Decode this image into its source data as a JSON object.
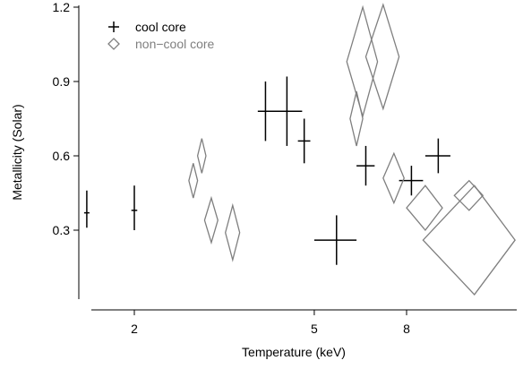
{
  "chart_data": {
    "type": "scatter",
    "title": "",
    "xlabel": "Temperature (keV)",
    "ylabel": "Metallicity (Solar)",
    "x_scale": "log",
    "xlim": [
      1.45,
      14.0
    ],
    "ylim": [
      0.0,
      1.2
    ],
    "x_ticks": [
      {
        "value": 2,
        "label": "2"
      },
      {
        "value": 5,
        "label": "5"
      },
      {
        "value": 8,
        "label": "8"
      }
    ],
    "y_ticks": [
      {
        "value": 0.3,
        "label": "0.3"
      },
      {
        "value": 0.6,
        "label": "0.6"
      },
      {
        "value": 0.9,
        "label": "0.9"
      },
      {
        "value": 1.2,
        "label": "1.2"
      }
    ],
    "grid": false,
    "legend_position": "top-left",
    "series": [
      {
        "name": "cool core",
        "marker": "cross",
        "color": "#000000",
        "points": [
          {
            "x": 1.57,
            "y": 0.37,
            "x_err": [
              0.0,
              0.0
            ],
            "y_err": [
              0.06,
              0.09
            ]
          },
          {
            "x": 2.0,
            "y": 0.38,
            "x_err": [
              0.03,
              0.03
            ],
            "y_err": [
              0.08,
              0.1
            ]
          },
          {
            "x": 3.9,
            "y": 0.78,
            "x_err": [
              0.15,
              0.15
            ],
            "y_err": [
              0.12,
              0.12
            ]
          },
          {
            "x": 4.35,
            "y": 0.78,
            "x_err": [
              0.35,
              0.35
            ],
            "y_err": [
              0.14,
              0.14
            ]
          },
          {
            "x": 4.75,
            "y": 0.66,
            "x_err": [
              0.15,
              0.15
            ],
            "y_err": [
              0.09,
              0.09
            ]
          },
          {
            "x": 5.6,
            "y": 0.26,
            "x_err": [
              0.6,
              0.6
            ],
            "y_err": [
              0.1,
              0.1
            ]
          },
          {
            "x": 6.5,
            "y": 0.56,
            "x_err": [
              0.3,
              0.3
            ],
            "y_err": [
              0.08,
              0.08
            ]
          },
          {
            "x": 8.2,
            "y": 0.5,
            "x_err": [
              0.5,
              0.5
            ],
            "y_err": [
              0.06,
              0.06
            ]
          },
          {
            "x": 9.4,
            "y": 0.6,
            "x_err": [
              0.6,
              0.6
            ],
            "y_err": [
              0.07,
              0.07
            ]
          }
        ]
      },
      {
        "name": "non−cool core",
        "marker": "diamond",
        "color": "#7f7f7f",
        "points": [
          {
            "x": 2.7,
            "y": 0.5,
            "x_err": [
              0.06,
              0.06
            ],
            "y_err": [
              0.07,
              0.07
            ]
          },
          {
            "x": 2.82,
            "y": 0.6,
            "x_err": [
              0.06,
              0.06
            ],
            "y_err": [
              0.07,
              0.07
            ]
          },
          {
            "x": 2.96,
            "y": 0.34,
            "x_err": [
              0.1,
              0.1
            ],
            "y_err": [
              0.09,
              0.09
            ]
          },
          {
            "x": 3.3,
            "y": 0.29,
            "x_err": [
              0.12,
              0.12
            ],
            "y_err": [
              0.11,
              0.11
            ]
          },
          {
            "x": 6.2,
            "y": 0.75,
            "x_err": [
              0.2,
              0.2
            ],
            "y_err": [
              0.11,
              0.11
            ]
          },
          {
            "x": 6.4,
            "y": 0.98,
            "x_err": [
              0.5,
              0.5
            ],
            "y_err": [
              0.22,
              0.22
            ]
          },
          {
            "x": 7.1,
            "y": 1.0,
            "x_err": [
              0.6,
              0.6
            ],
            "y_err": [
              0.21,
              0.21
            ]
          },
          {
            "x": 7.5,
            "y": 0.51,
            "x_err": [
              0.4,
              0.4
            ],
            "y_err": [
              0.1,
              0.1
            ]
          },
          {
            "x": 8.8,
            "y": 0.39,
            "x_err": [
              0.8,
              0.8
            ],
            "y_err": [
              0.09,
              0.09
            ]
          },
          {
            "x": 11.0,
            "y": 0.44,
            "x_err": [
              0.8,
              0.8
            ],
            "y_err": [
              0.06,
              0.06
            ]
          },
          {
            "x": 11.3,
            "y": 0.26,
            "x_err": [
              2.6,
              2.6
            ],
            "y_err": [
              0.22,
              0.22
            ]
          }
        ]
      }
    ]
  }
}
